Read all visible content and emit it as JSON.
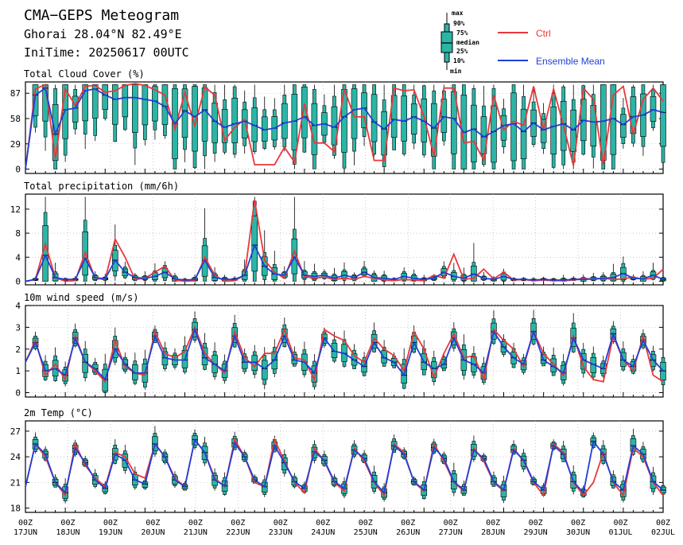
{
  "header": {
    "title": "CMA−GEPS Meteogram",
    "location": "Ghorai 28.04°N 82.49°E",
    "init_time": "IniTime: 20250617 00UTC"
  },
  "legend": {
    "box_labels": [
      "max",
      "90%",
      "75%",
      "median",
      "25%",
      "10%",
      "min"
    ],
    "ctrl_label": "Ctrl",
    "mean_label": "Ensemble Mean",
    "ctrl_color": "#e8383b",
    "mean_color": "#1f3fd8",
    "box_fill": "#2bb5a6"
  },
  "time_axis": {
    "ticks": [
      {
        "top": "00Z",
        "bottom": "17JUN"
      },
      {
        "top": "00Z",
        "bottom": "18JUN"
      },
      {
        "top": "00Z",
        "bottom": "19JUN"
      },
      {
        "top": "00Z",
        "bottom": "20JUN"
      },
      {
        "top": "00Z",
        "bottom": "21JUN"
      },
      {
        "top": "00Z",
        "bottom": "22JUN"
      },
      {
        "top": "00Z",
        "bottom": "23JUN"
      },
      {
        "top": "00Z",
        "bottom": "24JUN"
      },
      {
        "top": "00Z",
        "bottom": "25JUN"
      },
      {
        "top": "00Z",
        "bottom": "26JUN"
      },
      {
        "top": "00Z",
        "bottom": "27JUN"
      },
      {
        "top": "00Z",
        "bottom": "28JUN"
      },
      {
        "top": "00Z",
        "bottom": "29JUN"
      },
      {
        "top": "00Z",
        "bottom": "30JUN"
      },
      {
        "top": "00Z",
        "bottom": "01JUL"
      },
      {
        "top": "00Z",
        "bottom": "02JUL"
      }
    ]
  },
  "chart_data": [
    {
      "type": "box",
      "title": "Total Cloud Cover (%)",
      "yticks": [
        0,
        29,
        58,
        87
      ],
      "ylim": [
        -5,
        100
      ],
      "x_start": "2025-06-17T00Z",
      "x_end": "2025-07-02T00Z",
      "step_hours": 6,
      "ctrl": [
        0,
        92,
        97,
        12,
        92,
        73,
        95,
        96,
        88,
        90,
        96,
        98,
        96,
        91,
        85,
        46,
        88,
        50,
        94,
        85,
        33,
        48,
        57,
        5,
        5,
        5,
        25,
        8,
        75,
        30,
        30,
        20,
        92,
        60,
        60,
        10,
        10,
        93,
        90,
        91,
        60,
        15,
        93,
        93,
        30,
        32,
        10,
        85,
        45,
        55,
        50,
        95,
        45,
        92,
        50,
        4,
        93,
        80,
        5,
        85,
        95,
        40,
        80,
        93,
        78
      ],
      "mean": [
        0,
        85,
        93,
        40,
        68,
        70,
        90,
        92,
        85,
        80,
        82,
        82,
        80,
        78,
        72,
        52,
        67,
        60,
        68,
        55,
        48,
        52,
        55,
        50,
        45,
        47,
        53,
        55,
        60,
        50,
        52,
        48,
        60,
        68,
        70,
        54,
        46,
        57,
        55,
        60,
        55,
        47,
        60,
        58,
        42,
        46,
        37,
        43,
        50,
        52,
        43,
        53,
        45,
        49,
        52,
        45,
        56,
        54,
        55,
        58,
        51,
        60,
        62,
        68,
        65
      ]
    },
    {
      "type": "box",
      "title": "Total precipitation (mm/6h)",
      "yticks": [
        0,
        4,
        8,
        12
      ],
      "ylim": [
        -0.6,
        14.5
      ],
      "x_start": "2025-06-17T00Z",
      "x_end": "2025-07-02T00Z",
      "step_hours": 6,
      "ctrl": [
        0,
        0.3,
        6.2,
        0.6,
        0,
        0.1,
        4.8,
        0.5,
        0.3,
        7.0,
        4.0,
        0.3,
        0.5,
        1.5,
        2.5,
        0.2,
        0,
        0.1,
        4.0,
        1.0,
        0,
        0.1,
        1.0,
        13.5,
        3.5,
        1.5,
        0.5,
        5.0,
        0.8,
        0.5,
        0.7,
        0.3,
        0.5,
        0.3,
        0.8,
        0.5,
        0.2,
        0.1,
        0.3,
        0.2,
        0.1,
        1.0,
        0.5,
        4.5,
        0.3,
        0.5,
        2.0,
        0.4,
        1.5,
        0.2,
        0.3,
        0.1,
        0.2,
        0.1,
        0.1,
        0.2,
        0.5,
        0.3,
        0.5,
        0.3,
        0.4,
        0.7,
        0.3,
        0.5,
        2.0
      ],
      "mean": [
        0,
        0.3,
        4.3,
        0.6,
        0.3,
        0.3,
        3.8,
        0.6,
        0.4,
        3.5,
        1.5,
        0.6,
        0.5,
        0.8,
        1.5,
        0.4,
        0.2,
        0.3,
        3.5,
        0.6,
        0.3,
        0.3,
        1.0,
        6.0,
        2.5,
        1.2,
        1.0,
        4.0,
        1.0,
        0.8,
        1.0,
        0.5,
        1.0,
        0.6,
        1.5,
        0.6,
        0.5,
        0.3,
        0.8,
        0.5,
        0.3,
        0.5,
        1.5,
        0.8,
        0.5,
        1.2,
        0.5,
        0.3,
        0.8,
        0.3,
        0.3,
        0.2,
        0.3,
        0.2,
        0.2,
        0.3,
        0.3,
        0.4,
        0.5,
        0.6,
        1.3,
        0.5,
        0.4,
        1.0,
        0.3
      ]
    },
    {
      "type": "box",
      "title": "10m wind speed (m/s)",
      "yticks": [
        0,
        1,
        2,
        3,
        4
      ],
      "ylim": [
        -0.2,
        4.0
      ],
      "x_start": "2025-06-17T00Z",
      "x_end": "2025-07-02T00Z",
      "step_hours": 6,
      "ctrl": [
        1.4,
        2.4,
        0.8,
        1.3,
        0.6,
        2.6,
        1.4,
        1.0,
        0.5,
        2.4,
        1.2,
        0.9,
        0.8,
        2.8,
        1.8,
        1.6,
        1.9,
        3.0,
        1.8,
        1.3,
        0.9,
        2.8,
        1.6,
        1.2,
        1.8,
        1.8,
        2.9,
        1.6,
        1.5,
        0.6,
        2.9,
        2.6,
        2.4,
        1.7,
        1.4,
        2.5,
        2.0,
        1.7,
        1.0,
        2.8,
        2.0,
        0.7,
        1.8,
        2.7,
        1.6,
        1.7,
        0.6,
        2.9,
        2.4,
        2.0,
        1.2,
        2.8,
        1.8,
        1.3,
        0.8,
        2.6,
        1.2,
        0.6,
        0.5,
        2.6,
        1.5,
        1.0,
        2.6,
        0.8,
        0.5
      ],
      "mean": [
        1.4,
        2.3,
        1.0,
        1.1,
        0.8,
        2.5,
        1.4,
        1.1,
        0.6,
        2.0,
        1.3,
        0.9,
        0.9,
        2.6,
        1.6,
        1.5,
        1.5,
        2.9,
        1.6,
        1.3,
        1.0,
        2.6,
        1.4,
        1.4,
        1.1,
        1.5,
        2.6,
        1.5,
        1.4,
        0.9,
        2.5,
        1.9,
        1.8,
        1.5,
        1.2,
        2.3,
        1.6,
        1.4,
        0.8,
        2.3,
        1.4,
        1.1,
        1.3,
        2.5,
        1.5,
        1.3,
        0.9,
        2.8,
        2.1,
        1.6,
        1.3,
        2.8,
        1.5,
        1.2,
        0.9,
        2.5,
        1.5,
        1.3,
        1.1,
        2.7,
        1.5,
        1.2,
        2.4,
        1.5,
        1.0
      ]
    },
    {
      "type": "box",
      "title": "2m Temp (°C)",
      "yticks": [
        18,
        21,
        24,
        27
      ],
      "ylim": [
        17.5,
        28.2
      ],
      "x_start": "2025-06-17T00Z",
      "x_end": "2025-07-02T00Z",
      "step_hours": 6,
      "ctrl": [
        20.5,
        25.5,
        24.0,
        21.0,
        19.5,
        25.5,
        23.0,
        21.5,
        20.5,
        24.5,
        24.0,
        22.0,
        21.5,
        25.5,
        24.0,
        21.5,
        20.5,
        26.0,
        24.5,
        21.5,
        20.5,
        26.0,
        24.0,
        21.0,
        20.5,
        26.0,
        23.5,
        21.0,
        19.8,
        25.0,
        23.5,
        21.0,
        20.0,
        25.0,
        23.5,
        21.0,
        19.5,
        25.5,
        24.5,
        21.0,
        20.0,
        25.5,
        23.5,
        21.0,
        20.0,
        25.0,
        23.5,
        21.0,
        20.0,
        25.0,
        23.5,
        21.0,
        19.5,
        25.5,
        24.5,
        21.0,
        19.5,
        21.0,
        24.5,
        21.0,
        19.5,
        25.0,
        24.0,
        21.0,
        19.5
      ],
      "mean": [
        20.5,
        25.5,
        24.3,
        21.0,
        19.8,
        25.0,
        23.3,
        21.3,
        20.3,
        24.3,
        23.6,
        21.3,
        20.8,
        25.5,
        24.0,
        21.3,
        20.5,
        26.0,
        24.5,
        21.3,
        20.6,
        25.6,
        24.0,
        21.3,
        20.5,
        25.3,
        23.3,
        21.1,
        20.3,
        24.6,
        23.6,
        21.1,
        20.3,
        24.8,
        23.8,
        21.1,
        19.8,
        25.3,
        24.3,
        21.1,
        20.1,
        25.1,
        23.8,
        21.1,
        20.1,
        24.8,
        23.8,
        21.1,
        20.1,
        24.8,
        23.6,
        21.1,
        20.1,
        25.3,
        24.3,
        21.1,
        19.8,
        25.8,
        24.3,
        21.1,
        20.1,
        25.3,
        24.3,
        21.1,
        20.1
      ]
    }
  ]
}
